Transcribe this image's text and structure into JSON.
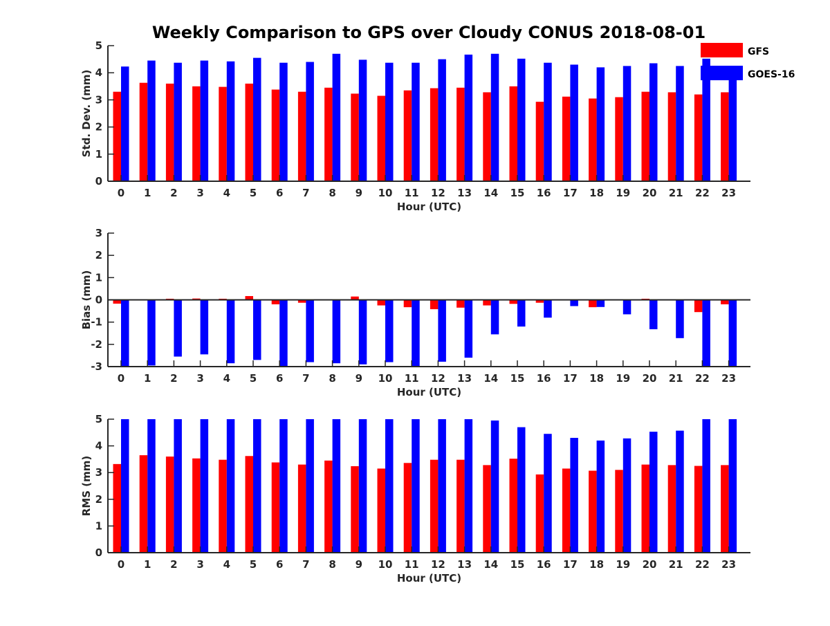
{
  "title": "Weekly Comparison to GPS over Cloudy CONUS 2018-08-01",
  "legend": {
    "position": "top-right",
    "entries": [
      "GFS",
      "GOES-16"
    ]
  },
  "colors": {
    "GFS": "#ff0000",
    "GOES-16": "#0000ff",
    "axis": "#262626"
  },
  "chart_data": [
    {
      "type": "bar",
      "ylabel": "Std. Dev. (mm)",
      "xlabel": "Hour (UTC)",
      "ylim": [
        0,
        5
      ],
      "yticks": [
        0,
        1,
        2,
        3,
        4,
        5
      ],
      "categories": [
        "0",
        "1",
        "2",
        "3",
        "4",
        "5",
        "6",
        "7",
        "8",
        "9",
        "10",
        "11",
        "12",
        "13",
        "14",
        "15",
        "16",
        "17",
        "18",
        "19",
        "20",
        "21",
        "22",
        "23"
      ],
      "series": [
        {
          "name": "GFS",
          "values": [
            3.3,
            3.63,
            3.6,
            3.5,
            3.48,
            3.6,
            3.38,
            3.3,
            3.45,
            3.23,
            3.15,
            3.35,
            3.43,
            3.45,
            3.28,
            3.5,
            2.93,
            3.12,
            3.05,
            3.1,
            3.3,
            3.28,
            3.2,
            3.28
          ]
        },
        {
          "name": "GOES-16",
          "values": [
            4.23,
            4.45,
            4.37,
            4.45,
            4.42,
            4.55,
            4.37,
            4.4,
            4.7,
            4.48,
            4.37,
            4.37,
            4.5,
            4.67,
            4.7,
            4.52,
            4.37,
            4.3,
            4.2,
            4.25,
            4.35,
            4.25,
            4.52,
            4.2
          ]
        }
      ]
    },
    {
      "type": "bar",
      "ylabel": "Bias (mm)",
      "xlabel": "Hour (UTC)",
      "ylim": [
        -3,
        3
      ],
      "yticks": [
        -3,
        -2,
        -1,
        0,
        1,
        2,
        3
      ],
      "zero_line": true,
      "categories": [
        "0",
        "1",
        "2",
        "3",
        "4",
        "5",
        "6",
        "7",
        "8",
        "9",
        "10",
        "11",
        "12",
        "13",
        "14",
        "15",
        "16",
        "17",
        "18",
        "19",
        "20",
        "21",
        "22",
        "23"
      ],
      "series": [
        {
          "name": "GFS",
          "values": [
            -0.17,
            -0.03,
            0.05,
            0.06,
            0.05,
            0.17,
            -0.2,
            -0.13,
            0.01,
            0.15,
            -0.25,
            -0.33,
            -0.42,
            -0.35,
            -0.25,
            -0.18,
            -0.13,
            0.0,
            -0.33,
            -0.01,
            0.05,
            -0.03,
            -0.55,
            -0.2
          ]
        },
        {
          "name": "GOES-16",
          "values": [
            -3.0,
            -2.95,
            -2.55,
            -2.45,
            -2.85,
            -2.7,
            -3.0,
            -2.8,
            -2.85,
            -2.9,
            -2.8,
            -3.0,
            -2.78,
            -2.6,
            -1.55,
            -1.2,
            -0.8,
            -0.28,
            -0.32,
            -0.65,
            -1.32,
            -1.72,
            -2.98,
            -3.0
          ]
        }
      ]
    },
    {
      "type": "bar",
      "ylabel": "RMS (mm)",
      "xlabel": "Hour (UTC)",
      "ylim": [
        0,
        5
      ],
      "yticks": [
        0,
        1,
        2,
        3,
        4,
        5
      ],
      "categories": [
        "0",
        "1",
        "2",
        "3",
        "4",
        "5",
        "6",
        "7",
        "8",
        "9",
        "10",
        "11",
        "12",
        "13",
        "14",
        "15",
        "16",
        "17",
        "18",
        "19",
        "20",
        "21",
        "22",
        "23"
      ],
      "series": [
        {
          "name": "GFS",
          "values": [
            3.32,
            3.65,
            3.6,
            3.53,
            3.48,
            3.62,
            3.38,
            3.3,
            3.45,
            3.24,
            3.15,
            3.36,
            3.48,
            3.48,
            3.28,
            3.52,
            2.93,
            3.15,
            3.07,
            3.1,
            3.3,
            3.28,
            3.25,
            3.28
          ]
        },
        {
          "name": "GOES-16",
          "values": [
            5.0,
            5.0,
            5.0,
            5.0,
            5.0,
            5.0,
            5.0,
            5.0,
            5.0,
            5.0,
            5.0,
            5.0,
            5.0,
            5.0,
            4.95,
            4.7,
            4.45,
            4.3,
            4.2,
            4.28,
            4.53,
            4.57,
            5.0,
            5.0
          ]
        }
      ]
    }
  ]
}
